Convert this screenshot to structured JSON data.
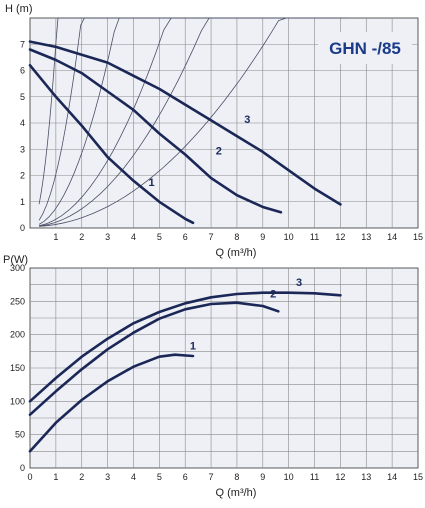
{
  "chart_data": [
    {
      "type": "line",
      "title": "GHN -/85",
      "xlabel": "Q (m³/h)",
      "ylabel": "H (m)",
      "xlim": [
        0,
        15
      ],
      "ylim": [
        0,
        8
      ],
      "grid": true,
      "x_ticks": [
        "1",
        "2",
        "3",
        "4",
        "5",
        "6",
        "7",
        "8",
        "9",
        "10",
        "11",
        "12",
        "13",
        "14",
        "15"
      ],
      "y_ticks": [
        "0",
        "1",
        "2",
        "3",
        "4",
        "5",
        "6",
        "7"
      ],
      "series": [
        {
          "name": "1",
          "label_at": [
            4.7,
            1.6
          ],
          "points": [
            [
              0,
              6.2
            ],
            [
              1,
              5.0
            ],
            [
              2,
              3.9
            ],
            [
              3,
              2.7
            ],
            [
              4,
              1.8
            ],
            [
              5,
              1.0
            ],
            [
              6,
              0.35
            ],
            [
              6.3,
              0.2
            ]
          ]
        },
        {
          "name": "2",
          "label_at": [
            7.3,
            2.8
          ],
          "points": [
            [
              0,
              6.8
            ],
            [
              1,
              6.4
            ],
            [
              2,
              5.9
            ],
            [
              3,
              5.2
            ],
            [
              4,
              4.5
            ],
            [
              5,
              3.6
            ],
            [
              6,
              2.8
            ],
            [
              7,
              1.9
            ],
            [
              8,
              1.25
            ],
            [
              9,
              0.8
            ],
            [
              9.7,
              0.6
            ]
          ]
        },
        {
          "name": "3",
          "label_at": [
            8.4,
            4.0
          ],
          "points": [
            [
              0,
              7.1
            ],
            [
              1,
              6.9
            ],
            [
              2,
              6.6
            ],
            [
              3,
              6.3
            ],
            [
              4,
              5.8
            ],
            [
              5,
              5.3
            ],
            [
              6,
              4.7
            ],
            [
              7,
              4.1
            ],
            [
              8,
              3.5
            ],
            [
              9,
              2.9
            ],
            [
              10,
              2.2
            ],
            [
              11,
              1.5
            ],
            [
              12,
              0.9
            ]
          ]
        }
      ],
      "system_curves": [
        {
          "k": 7.0,
          "x_end": 3.6
        },
        {
          "k": 2.0,
          "x_end": 6.2
        },
        {
          "k": 0.7,
          "x_end": 8.1
        },
        {
          "k": 0.28,
          "x_end": 11.7
        },
        {
          "k": 0.17,
          "x_end": 12.3
        },
        {
          "k": 0.085,
          "x_end": 12.3
        }
      ]
    },
    {
      "type": "line",
      "title": "",
      "xlabel": "Q (m³/h)",
      "ylabel": "P(W)",
      "xlim": [
        0,
        15
      ],
      "ylim": [
        0,
        300
      ],
      "grid": true,
      "x_ticks": [
        "0",
        "1",
        "2",
        "3",
        "4",
        "5",
        "6",
        "7",
        "8",
        "9",
        "10",
        "11",
        "12",
        "13",
        "14",
        "15"
      ],
      "y_ticks": [
        "0",
        "50",
        "100",
        "150",
        "200",
        "250",
        "300"
      ],
      "series": [
        {
          "name": "1",
          "label_at": [
            6.3,
            178
          ],
          "points": [
            [
              0,
              25
            ],
            [
              1,
              68
            ],
            [
              2,
              102
            ],
            [
              3,
              130
            ],
            [
              4,
              152
            ],
            [
              5,
              167
            ],
            [
              5.6,
              170
            ],
            [
              6.3,
              168
            ]
          ]
        },
        {
          "name": "2",
          "label_at": [
            9.4,
            256
          ],
          "points": [
            [
              0,
              80
            ],
            [
              1,
              115
            ],
            [
              2,
              148
            ],
            [
              3,
              178
            ],
            [
              4,
              203
            ],
            [
              5,
              224
            ],
            [
              6,
              238
            ],
            [
              7,
              246
            ],
            [
              8,
              248
            ],
            [
              9,
              243
            ],
            [
              9.6,
              235
            ]
          ]
        },
        {
          "name": "3",
          "label_at": [
            10.4,
            273
          ],
          "points": [
            [
              0,
              100
            ],
            [
              1,
              135
            ],
            [
              2,
              167
            ],
            [
              3,
              194
            ],
            [
              4,
              217
            ],
            [
              5,
              234
            ],
            [
              6,
              247
            ],
            [
              7,
              256
            ],
            [
              8,
              261
            ],
            [
              9,
              263
            ],
            [
              10,
              263
            ],
            [
              11,
              262
            ],
            [
              12,
              259
            ]
          ]
        }
      ]
    }
  ]
}
